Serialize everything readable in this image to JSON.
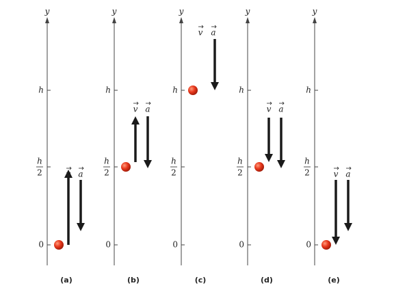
{
  "panels": [
    {
      "axis_label": "y",
      "tick_h": "h",
      "tick_half_numerator": "h",
      "tick_half_denominator": "2",
      "tick_zero": "0",
      "v_label": "v",
      "a_label": "a",
      "caption": "(a)"
    },
    {
      "axis_label": "y",
      "tick_h": "h",
      "tick_half_numerator": "h",
      "tick_half_denominator": "2",
      "tick_zero": "0",
      "v_label": "v",
      "a_label": "a",
      "caption": "(b)"
    },
    {
      "axis_label": "y",
      "tick_h": "h",
      "tick_half_numerator": "h",
      "tick_half_denominator": "2",
      "tick_zero": "0",
      "v_label": "v",
      "a_label": "a",
      "caption": "(c)"
    },
    {
      "axis_label": "y",
      "tick_h": "h",
      "tick_half_numerator": "h",
      "tick_half_denominator": "2",
      "tick_zero": "0",
      "v_label": "v",
      "a_label": "a",
      "caption": "(d)"
    },
    {
      "axis_label": "y",
      "tick_h": "h",
      "tick_half_numerator": "h",
      "tick_half_denominator": "2",
      "tick_zero": "0",
      "v_label": "v",
      "a_label": "a",
      "caption": "(e)"
    }
  ]
}
